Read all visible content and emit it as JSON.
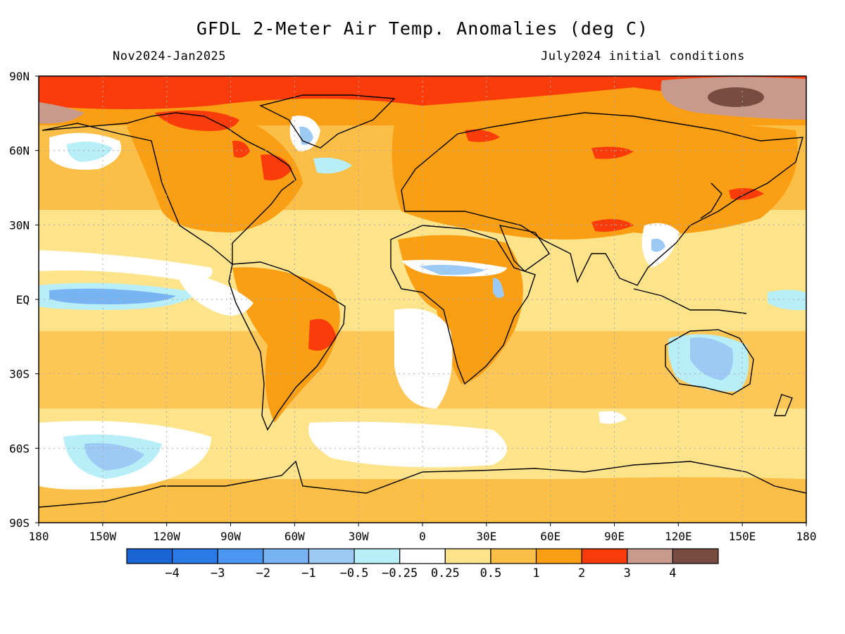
{
  "title": "GFDL 2-Meter Air Temp. Anomalies (deg C)",
  "subtitle_left": "Nov2024-Jan2025",
  "subtitle_right": "July2024 initial conditions",
  "lat_labels": [
    "90N",
    "60N",
    "30N",
    "EQ",
    "30S",
    "60S",
    "90S"
  ],
  "lon_labels": [
    "180",
    "150W",
    "120W",
    "90W",
    "60W",
    "30W",
    "0",
    "30E",
    "60E",
    "90E",
    "120E",
    "150E",
    "180"
  ],
  "colorbar": {
    "colors": [
      "#1a64d4",
      "#2b7ae6",
      "#4a96f0",
      "#78b4f4",
      "#9ccaf4",
      "#b8eef8",
      "#ffffff",
      "#fde48a",
      "#fbbe46",
      "#fa9e14",
      "#fa3c0a",
      "#c89a8c",
      "#784c40"
    ],
    "labels": [
      "−4",
      "−3",
      "−2",
      "−1",
      "−0.5",
      "−0.25",
      "0.25",
      "0.5",
      "1",
      "2",
      "3",
      "4"
    ]
  }
}
